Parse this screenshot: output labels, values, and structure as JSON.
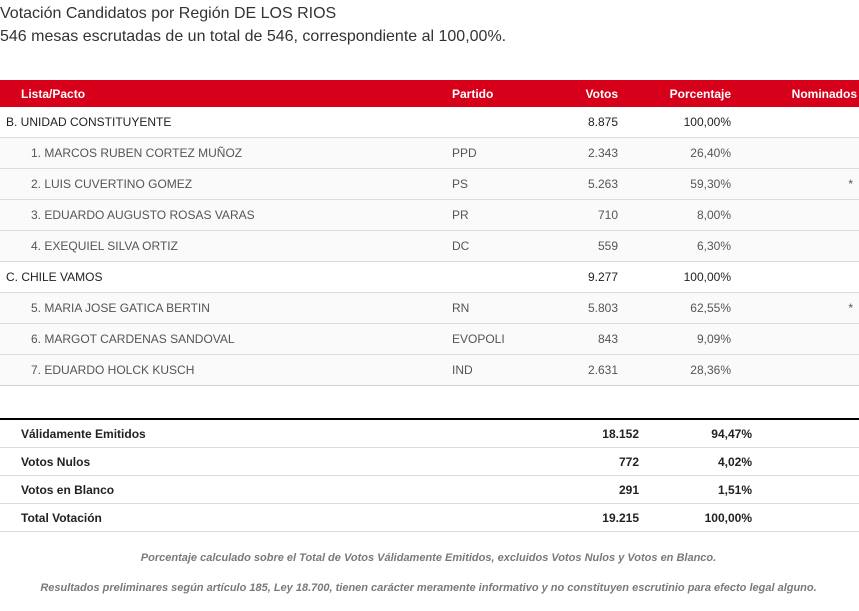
{
  "header": {
    "title": "Votación Candidatos por Región DE LOS RIOS",
    "subtitle": "546 mesas escrutadas de un total de 546, correspondiente al 100,00%."
  },
  "columns": {
    "lista": "Lista/Pacto",
    "partido": "Partido",
    "votos": "Votos",
    "porcentaje": "Porcentaje",
    "nominados": "Nominados"
  },
  "rows": [
    {
      "type": "group",
      "lista": "B. UNIDAD CONSTITUYENTE",
      "partido": "",
      "votos": "8.875",
      "porcentaje": "100,00%",
      "nominado": ""
    },
    {
      "type": "cand",
      "lista": "1. MARCOS RUBEN CORTEZ MUÑOZ",
      "partido": "PPD",
      "votos": "2.343",
      "porcentaje": "26,40%",
      "nominado": ""
    },
    {
      "type": "cand",
      "lista": "2. LUIS CUVERTINO GOMEZ",
      "partido": "PS",
      "votos": "5.263",
      "porcentaje": "59,30%",
      "nominado": "*"
    },
    {
      "type": "cand",
      "lista": "3. EDUARDO AUGUSTO ROSAS VARAS",
      "partido": "PR",
      "votos": "710",
      "porcentaje": "8,00%",
      "nominado": ""
    },
    {
      "type": "cand",
      "lista": "4. EXEQUIEL SILVA ORTIZ",
      "partido": "DC",
      "votos": "559",
      "porcentaje": "6,30%",
      "nominado": ""
    },
    {
      "type": "group",
      "lista": "C. CHILE VAMOS",
      "partido": "",
      "votos": "9.277",
      "porcentaje": "100,00%",
      "nominado": ""
    },
    {
      "type": "cand",
      "lista": "5. MARIA JOSE GATICA BERTIN",
      "partido": "RN",
      "votos": "5.803",
      "porcentaje": "62,55%",
      "nominado": "*"
    },
    {
      "type": "cand",
      "lista": "6. MARGOT CARDENAS SANDOVAL",
      "partido": "EVOPOLI",
      "votos": "843",
      "porcentaje": "9,09%",
      "nominado": ""
    },
    {
      "type": "cand",
      "lista": "7. EDUARDO HOLCK KUSCH",
      "partido": "IND",
      "votos": "2.631",
      "porcentaje": "28,36%",
      "nominado": ""
    }
  ],
  "totals": [
    {
      "label": "Válidamente Emitidos",
      "votos": "18.152",
      "porcentaje": "94,47%"
    },
    {
      "label": "Votos Nulos",
      "votos": "772",
      "porcentaje": "4,02%"
    },
    {
      "label": "Votos en Blanco",
      "votos": "291",
      "porcentaje": "1,51%"
    },
    {
      "label": "Total Votación",
      "votos": "19.215",
      "porcentaje": "100,00%"
    }
  ],
  "notes": {
    "note1": "Porcentaje calculado sobre el Total de Votos Válidamente Emitidos, excluidos Votos Nulos y Votos en Blanco.",
    "note2": "Resultados preliminares según artículo 185, Ley 18.700, tienen carácter meramente informativo y no constituyen escrutinio para efecto legal alguno."
  },
  "colors": {
    "header_bg": "#d7001b",
    "header_text": "#ffffff"
  }
}
